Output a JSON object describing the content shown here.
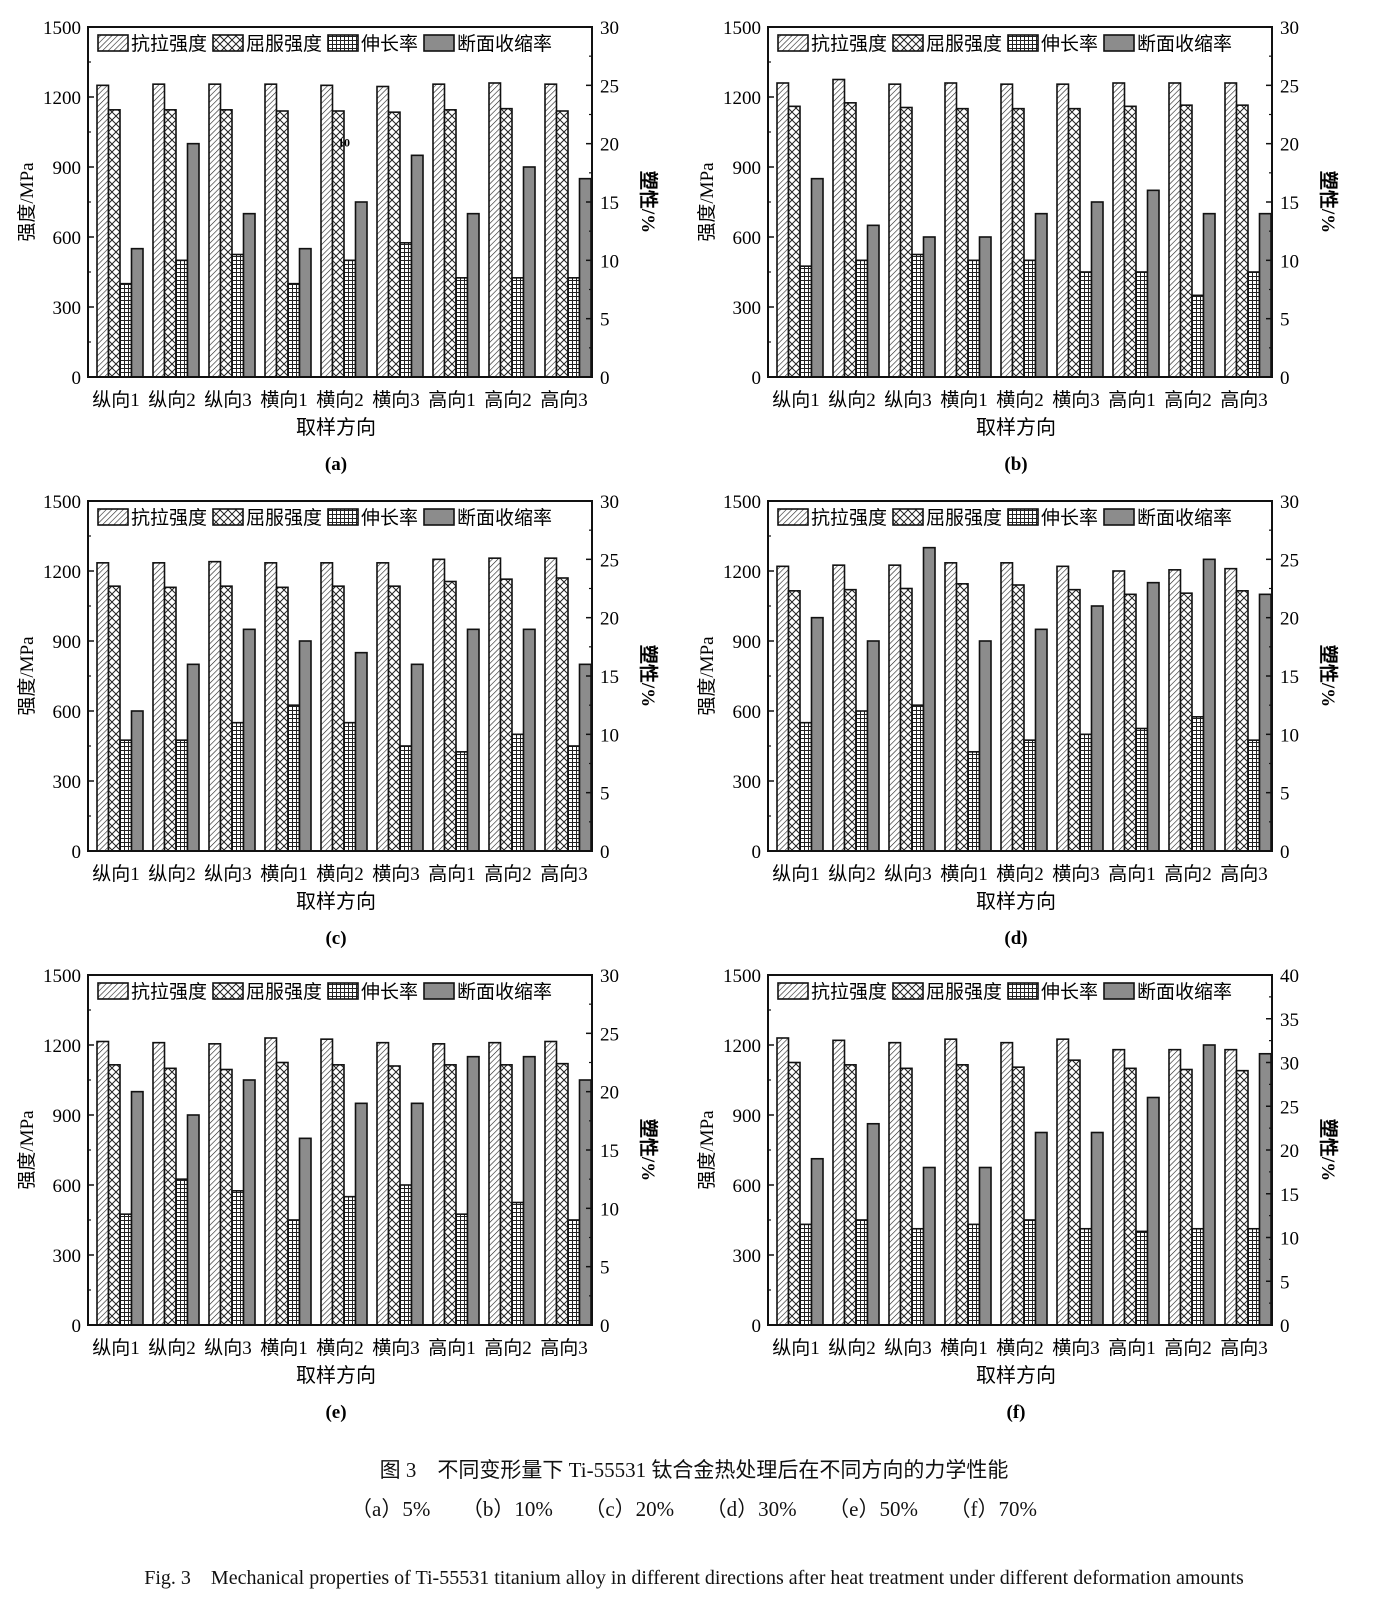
{
  "legend": [
    "抗拉强度",
    "屈服强度",
    "伸长率",
    "断面收缩率"
  ],
  "colors": {
    "bars": "#ffffff",
    "reduction_fill": "#8c8c8c",
    "stroke": "#111111"
  },
  "caption": {
    "title": "图 3　不同变形量下 Ti-55531 钛合金热处理后在不同方向的力学性能",
    "subs": "（a）5%　　（b）10%　　（c）20%　　（d）30%　　（e）50%　　（f）70%",
    "english": "Fig. 3　Mechanical properties of Ti-55531 titanium alloy in different directions after heat treatment under different deformation amounts"
  },
  "chart_data": [
    {
      "panel": "(a)",
      "type": "bar",
      "categories": [
        "纵向1",
        "纵向2",
        "纵向3",
        "横向1",
        "横向2",
        "横向3",
        "高向1",
        "高向2",
        "高向3"
      ],
      "xlabel": "取样方向",
      "ylabel": "强度/MPa",
      "ylabel_right": "塑性/%",
      "ylim": [
        0,
        1500
      ],
      "yticks": [
        0,
        300,
        600,
        900,
        1200,
        1500
      ],
      "ylim_right": [
        0,
        30
      ],
      "yticks_right": [
        0,
        5,
        10,
        15,
        20,
        25,
        30
      ],
      "legend_position": "top",
      "annotations": [
        {
          "text": "10",
          "category": "横向2"
        }
      ],
      "series": [
        {
          "name": "抗拉强度",
          "axis": "left",
          "values": [
            1250,
            1255,
            1255,
            1255,
            1250,
            1245,
            1255,
            1260,
            1255
          ]
        },
        {
          "name": "屈服强度",
          "axis": "left",
          "values": [
            1145,
            1145,
            1145,
            1140,
            1140,
            1135,
            1145,
            1150,
            1140
          ]
        },
        {
          "name": "伸长率",
          "axis": "right",
          "values": [
            8,
            10,
            10.5,
            8,
            10,
            11.5,
            8.5,
            8.5,
            8.5
          ]
        },
        {
          "name": "断面收缩率",
          "axis": "right",
          "values": [
            11,
            20,
            14,
            11,
            15,
            19,
            14,
            18,
            17
          ]
        }
      ]
    },
    {
      "panel": "(b)",
      "type": "bar",
      "categories": [
        "纵向1",
        "纵向2",
        "纵向3",
        "横向1",
        "横向2",
        "横向3",
        "高向1",
        "高向2",
        "高向3"
      ],
      "xlabel": "取样方向",
      "ylabel": "强度/MPa",
      "ylabel_right": "塑性/%",
      "ylim": [
        0,
        1500
      ],
      "yticks": [
        0,
        300,
        600,
        900,
        1200,
        1500
      ],
      "ylim_right": [
        0,
        30
      ],
      "yticks_right": [
        0,
        5,
        10,
        15,
        20,
        25,
        30
      ],
      "legend_position": "top",
      "series": [
        {
          "name": "抗拉强度",
          "axis": "left",
          "values": [
            1260,
            1275,
            1255,
            1260,
            1255,
            1255,
            1260,
            1260,
            1260
          ]
        },
        {
          "name": "屈服强度",
          "axis": "left",
          "values": [
            1160,
            1175,
            1155,
            1150,
            1150,
            1150,
            1160,
            1165,
            1165
          ]
        },
        {
          "name": "伸长率",
          "axis": "right",
          "values": [
            9.5,
            10,
            10.5,
            10,
            10,
            9,
            9,
            7,
            9
          ]
        },
        {
          "name": "断面收缩率",
          "axis": "right",
          "values": [
            17,
            13,
            12,
            12,
            14,
            15,
            16,
            14,
            14
          ]
        }
      ]
    },
    {
      "panel": "(c)",
      "type": "bar",
      "categories": [
        "纵向1",
        "纵向2",
        "纵向3",
        "横向1",
        "横向2",
        "横向3",
        "高向1",
        "高向2",
        "高向3"
      ],
      "xlabel": "取样方向",
      "ylabel": "强度/MPa",
      "ylabel_right": "塑性/%",
      "ylim": [
        0,
        1500
      ],
      "yticks": [
        0,
        300,
        600,
        900,
        1200,
        1500
      ],
      "ylim_right": [
        0,
        30
      ],
      "yticks_right": [
        0,
        5,
        10,
        15,
        20,
        25,
        30
      ],
      "legend_position": "top",
      "series": [
        {
          "name": "抗拉强度",
          "axis": "left",
          "values": [
            1235,
            1235,
            1240,
            1235,
            1235,
            1235,
            1250,
            1255,
            1255
          ]
        },
        {
          "name": "屈服强度",
          "axis": "left",
          "values": [
            1135,
            1130,
            1135,
            1130,
            1135,
            1135,
            1155,
            1165,
            1170
          ]
        },
        {
          "name": "伸长率",
          "axis": "right",
          "values": [
            9.5,
            9.5,
            11,
            12.5,
            11,
            9,
            8.5,
            10,
            9
          ]
        },
        {
          "name": "断面收缩率",
          "axis": "right",
          "values": [
            12,
            16,
            19,
            18,
            17,
            16,
            19,
            19,
            16
          ]
        }
      ]
    },
    {
      "panel": "(d)",
      "type": "bar",
      "categories": [
        "纵向1",
        "纵向2",
        "纵向3",
        "横向1",
        "横向2",
        "横向3",
        "高向1",
        "高向2",
        "高向3"
      ],
      "xlabel": "取样方向",
      "ylabel": "强度/MPa",
      "ylabel_right": "塑性/%",
      "ylim": [
        0,
        1500
      ],
      "yticks": [
        0,
        300,
        600,
        900,
        1200,
        1500
      ],
      "ylim_right": [
        0,
        30
      ],
      "yticks_right": [
        0,
        5,
        10,
        15,
        20,
        25,
        30
      ],
      "legend_position": "top",
      "series": [
        {
          "name": "抗拉强度",
          "axis": "left",
          "values": [
            1220,
            1225,
            1225,
            1235,
            1235,
            1220,
            1200,
            1205,
            1210
          ]
        },
        {
          "name": "屈服强度",
          "axis": "left",
          "values": [
            1115,
            1120,
            1125,
            1145,
            1140,
            1120,
            1100,
            1105,
            1115
          ]
        },
        {
          "name": "伸长率",
          "axis": "right",
          "values": [
            11,
            12,
            12.5,
            8.5,
            9.5,
            10,
            10.5,
            11.5,
            9.5
          ]
        },
        {
          "name": "断面收缩率",
          "axis": "right",
          "values": [
            20,
            18,
            26,
            18,
            19,
            21,
            23,
            25,
            22
          ]
        }
      ]
    },
    {
      "panel": "(e)",
      "type": "bar",
      "categories": [
        "纵向1",
        "纵向2",
        "纵向3",
        "横向1",
        "横向2",
        "横向3",
        "高向1",
        "高向2",
        "高向3"
      ],
      "xlabel": "取样方向",
      "ylabel": "强度/MPa",
      "ylabel_right": "塑性/%",
      "ylim": [
        0,
        1500
      ],
      "yticks": [
        0,
        300,
        600,
        900,
        1200,
        1500
      ],
      "ylim_right": [
        0,
        30
      ],
      "yticks_right": [
        0,
        5,
        10,
        15,
        20,
        25,
        30
      ],
      "legend_position": "top",
      "series": [
        {
          "name": "抗拉强度",
          "axis": "left",
          "values": [
            1215,
            1210,
            1205,
            1230,
            1225,
            1210,
            1205,
            1210,
            1215
          ]
        },
        {
          "name": "屈服强度",
          "axis": "left",
          "values": [
            1115,
            1100,
            1095,
            1125,
            1115,
            1110,
            1115,
            1115,
            1120
          ]
        },
        {
          "name": "伸长率",
          "axis": "right",
          "values": [
            9.5,
            12.5,
            11.5,
            9,
            11,
            12,
            9.5,
            10.5,
            9
          ]
        },
        {
          "name": "断面收缩率",
          "axis": "right",
          "values": [
            20,
            18,
            21,
            16,
            19,
            19,
            23,
            23,
            21
          ]
        }
      ]
    },
    {
      "panel": "(f)",
      "type": "bar",
      "categories": [
        "纵向1",
        "纵向2",
        "纵向3",
        "横向1",
        "横向2",
        "横向3",
        "高向1",
        "高向2",
        "高向3"
      ],
      "xlabel": "取样方向",
      "ylabel": "强度/MPa",
      "ylabel_right": "塑性/%",
      "ylim": [
        0,
        1500
      ],
      "yticks": [
        0,
        300,
        600,
        900,
        1200,
        1500
      ],
      "ylim_right": [
        0,
        40
      ],
      "yticks_right": [
        0,
        5,
        10,
        15,
        20,
        25,
        30,
        35,
        40
      ],
      "legend_position": "top",
      "series": [
        {
          "name": "抗拉强度",
          "axis": "left",
          "values": [
            1230,
            1220,
            1210,
            1225,
            1210,
            1225,
            1180,
            1180,
            1180
          ]
        },
        {
          "name": "屈服强度",
          "axis": "left",
          "values": [
            1125,
            1115,
            1100,
            1115,
            1105,
            1135,
            1100,
            1095,
            1090
          ]
        },
        {
          "name": "伸长率",
          "axis": "right",
          "values": [
            11.5,
            12,
            11,
            11.5,
            12,
            11,
            10.7,
            11,
            11
          ]
        },
        {
          "name": "断面收缩率",
          "axis": "right",
          "values": [
            19,
            23,
            18,
            18,
            22,
            22,
            26,
            32,
            31
          ]
        }
      ]
    }
  ]
}
